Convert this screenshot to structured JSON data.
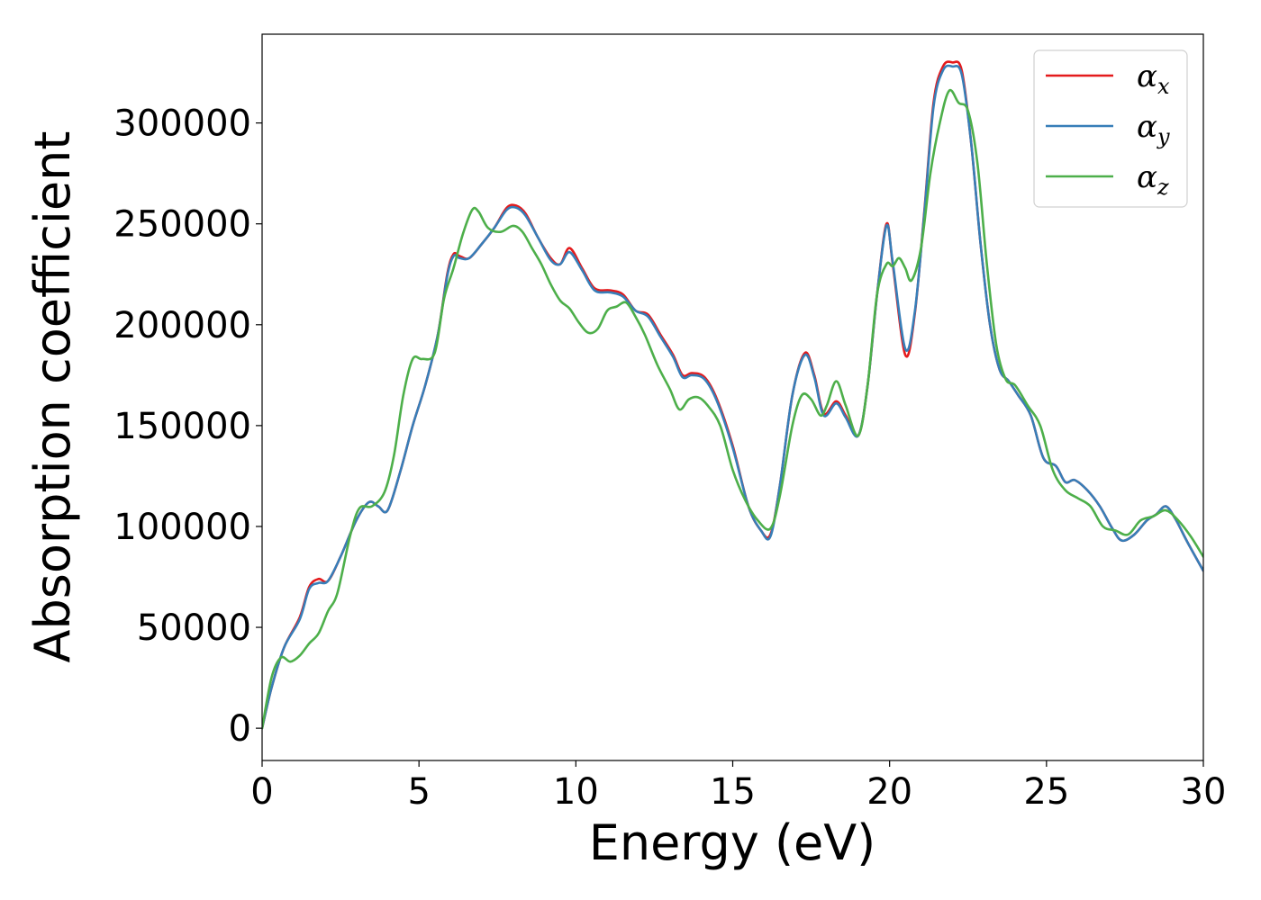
{
  "chart_data": {
    "type": "line",
    "xlabel": "Energy (eV)",
    "ylabel": "Absorption coefficient",
    "xlim": [
      0,
      30
    ],
    "ylim": [
      -16000,
      344000
    ],
    "xticks": [
      0,
      5,
      10,
      15,
      20,
      25,
      30
    ],
    "xtick_labels": [
      "0",
      "5",
      "10",
      "15",
      "20",
      "25",
      "30"
    ],
    "yticks": [
      0,
      50000,
      100000,
      150000,
      200000,
      250000,
      300000
    ],
    "ytick_labels": [
      "0",
      "50000",
      "100000",
      "150000",
      "200000",
      "250000",
      "300000"
    ],
    "grid": false,
    "legend_position": "top-right",
    "series": [
      {
        "name": "α_x",
        "symbol": "α",
        "subscript": "x",
        "color": "#e41a1c",
        "x": [
          0,
          0.3,
          0.7,
          1.2,
          1.5,
          1.8,
          2.1,
          2.5,
          3.0,
          3.4,
          3.7,
          4.0,
          4.4,
          4.8,
          5.2,
          5.6,
          5.9,
          6.1,
          6.3,
          6.6,
          7.0,
          7.4,
          7.8,
          8.1,
          8.4,
          8.8,
          9.2,
          9.5,
          9.8,
          10.2,
          10.6,
          11.1,
          11.5,
          11.9,
          12.3,
          12.7,
          13.1,
          13.4,
          13.7,
          14.1,
          14.5,
          15.0,
          15.5,
          15.9,
          16.2,
          16.5,
          16.9,
          17.3,
          17.6,
          17.9,
          18.3,
          18.6,
          19.0,
          19.3,
          19.6,
          19.9,
          20.1,
          20.5,
          20.8,
          21.1,
          21.4,
          21.7,
          22.0,
          22.3,
          22.6,
          22.9,
          23.2,
          23.5,
          23.8,
          24.1,
          24.5,
          24.9,
          25.3,
          25.6,
          25.9,
          26.3,
          26.7,
          27.1,
          27.4,
          27.8,
          28.2,
          28.5,
          28.8,
          29.1,
          29.5,
          30.0
        ],
        "y": [
          0,
          20000,
          40000,
          55000,
          70000,
          74000,
          73000,
          85000,
          103000,
          112000,
          110000,
          108000,
          127000,
          150000,
          170000,
          195000,
          225000,
          235000,
          234000,
          233000,
          240000,
          248000,
          258000,
          259000,
          255000,
          243000,
          233000,
          230000,
          238000,
          228000,
          218000,
          217000,
          215000,
          207000,
          205000,
          195000,
          185000,
          175000,
          176000,
          174000,
          163000,
          140000,
          110000,
          98000,
          96000,
          120000,
          165000,
          186000,
          175000,
          156000,
          162000,
          155000,
          145000,
          170000,
          215000,
          250000,
          230000,
          185000,
          205000,
          255000,
          310000,
          328000,
          330000,
          326000,
          290000,
          240000,
          200000,
          178000,
          172000,
          165000,
          155000,
          134000,
          130000,
          122000,
          123000,
          118000,
          110000,
          99000,
          93000,
          96000,
          103000,
          106000,
          110000,
          104000,
          92000,
          78000
        ]
      },
      {
        "name": "α_y",
        "symbol": "α",
        "subscript": "y",
        "color": "#377eb8",
        "x": [
          0,
          0.3,
          0.7,
          1.2,
          1.5,
          1.8,
          2.1,
          2.5,
          3.0,
          3.4,
          3.7,
          4.0,
          4.4,
          4.8,
          5.2,
          5.6,
          5.9,
          6.1,
          6.3,
          6.6,
          7.0,
          7.4,
          7.8,
          8.1,
          8.4,
          8.8,
          9.2,
          9.5,
          9.8,
          10.2,
          10.6,
          11.1,
          11.5,
          11.9,
          12.3,
          12.7,
          13.1,
          13.4,
          13.7,
          14.1,
          14.5,
          15.0,
          15.5,
          15.9,
          16.2,
          16.5,
          16.9,
          17.3,
          17.6,
          17.9,
          18.3,
          18.6,
          19.0,
          19.3,
          19.6,
          19.9,
          20.1,
          20.5,
          20.8,
          21.1,
          21.4,
          21.7,
          22.0,
          22.3,
          22.6,
          22.9,
          23.2,
          23.5,
          23.8,
          24.1,
          24.5,
          24.9,
          25.3,
          25.6,
          25.9,
          26.3,
          26.7,
          27.1,
          27.4,
          27.8,
          28.2,
          28.5,
          28.8,
          29.1,
          29.5,
          30.0
        ],
        "y": [
          0,
          20000,
          40000,
          54000,
          69000,
          72000,
          73000,
          85000,
          103000,
          112000,
          110000,
          108000,
          127000,
          150000,
          170000,
          195000,
          224000,
          234000,
          233000,
          233000,
          240000,
          248000,
          257000,
          258000,
          254000,
          243000,
          232000,
          230000,
          236000,
          227000,
          217000,
          216000,
          214000,
          207000,
          204000,
          194000,
          184000,
          174000,
          175000,
          173000,
          162000,
          139000,
          110000,
          98000,
          95000,
          120000,
          165000,
          185000,
          174000,
          155000,
          161000,
          154000,
          145000,
          170000,
          215000,
          249000,
          231000,
          188000,
          206000,
          254000,
          308000,
          326000,
          328000,
          324000,
          290000,
          240000,
          200000,
          178000,
          172000,
          165000,
          155000,
          134000,
          130000,
          122000,
          123000,
          118000,
          110000,
          99000,
          93000,
          96000,
          103000,
          106000,
          110000,
          104000,
          92000,
          78000
        ]
      },
      {
        "name": "α_z",
        "symbol": "α",
        "subscript": "z",
        "color": "#4daf4a",
        "x": [
          0,
          0.3,
          0.6,
          0.9,
          1.2,
          1.5,
          1.8,
          2.1,
          2.4,
          2.8,
          3.1,
          3.5,
          3.9,
          4.2,
          4.5,
          4.8,
          5.1,
          5.5,
          5.8,
          6.1,
          6.4,
          6.7,
          6.9,
          7.2,
          7.6,
          8.0,
          8.3,
          8.6,
          8.9,
          9.2,
          9.5,
          9.8,
          10.1,
          10.4,
          10.7,
          11.0,
          11.3,
          11.6,
          11.9,
          12.2,
          12.6,
          13.0,
          13.3,
          13.6,
          13.9,
          14.2,
          14.6,
          15.0,
          15.4,
          15.8,
          16.2,
          16.5,
          16.9,
          17.2,
          17.5,
          17.8,
          18.0,
          18.3,
          18.6,
          19.0,
          19.3,
          19.6,
          19.9,
          20.1,
          20.3,
          20.5,
          20.7,
          21.0,
          21.3,
          21.6,
          21.9,
          22.2,
          22.5,
          22.8,
          23.1,
          23.4,
          23.7,
          24.0,
          24.4,
          24.8,
          25.2,
          25.6,
          26.0,
          26.4,
          26.8,
          27.2,
          27.6,
          28.0,
          28.4,
          28.8,
          29.2,
          29.6,
          30.0
        ],
        "y": [
          0,
          25000,
          35000,
          33000,
          36000,
          42000,
          47000,
          58000,
          67000,
          95000,
          109000,
          110000,
          117000,
          135000,
          165000,
          183000,
          183000,
          186000,
          213000,
          228000,
          245000,
          257000,
          256000,
          248000,
          246000,
          249000,
          246000,
          238000,
          230000,
          220000,
          212000,
          208000,
          201000,
          196000,
          198000,
          207000,
          209000,
          211000,
          204000,
          195000,
          180000,
          168000,
          158000,
          163000,
          164000,
          160000,
          150000,
          128000,
          113000,
          103000,
          99000,
          115000,
          150000,
          165000,
          163000,
          155000,
          160000,
          172000,
          160000,
          145000,
          170000,
          215000,
          230000,
          229000,
          233000,
          228000,
          222000,
          238000,
          275000,
          300000,
          316000,
          310000,
          306000,
          280000,
          230000,
          190000,
          173000,
          170000,
          160000,
          150000,
          128000,
          118000,
          114000,
          110000,
          100000,
          98000,
          96000,
          103000,
          105000,
          108000,
          103000,
          95000,
          85000
        ]
      }
    ]
  }
}
